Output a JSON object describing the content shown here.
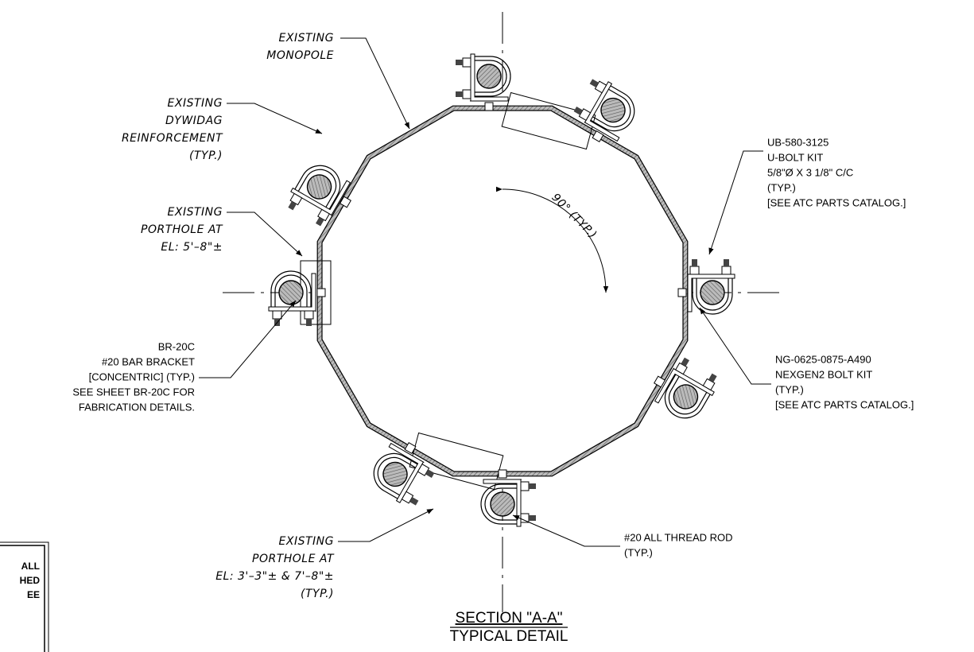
{
  "labels": [
    {
      "lines": [
        "EXISTING",
        "MONOPOLE"
      ]
    },
    {
      "lines": [
        "EXISTING",
        "DYWIDAG",
        "REINFORCEMENT",
        "(TYP.)"
      ]
    },
    {
      "lines": [
        "EXISTING",
        "PORTHOLE AT",
        "EL: 5'–8\"±"
      ]
    },
    {
      "lines": [
        "BR-20C",
        "#20 BAR BRACKET",
        "[CONCENTRIC] (TYP.)",
        "SEE SHEET BR-20C FOR",
        "FABRICATION DETAILS."
      ]
    },
    {
      "lines": [
        "EXISTING",
        "PORTHOLE AT",
        "EL: 3'–3\"± & 7'–8\"±",
        "(TYP.)"
      ]
    },
    {
      "lines": [
        "#20 ALL THREAD ROD",
        "(TYP.)"
      ]
    },
    {
      "lines": [
        "UB-580-3125",
        "U-BOLT KIT",
        "5/8\"Ø X 3 1/8\" C/C",
        "(TYP.)",
        "[SEE ATC PARTS CATALOG.]"
      ]
    },
    {
      "lines": [
        "NG-0625-0875-A490",
        "NEXGEN2 BOLT KIT",
        "(TYP.)",
        "[SEE ATC PARTS CATALOG.]"
      ]
    },
    {
      "lines": [
        "90° (TYP.)"
      ]
    }
  ],
  "section": {
    "title": "SECTION \"A-A\"",
    "subtitle": "TYPICAL DETAIL"
  },
  "note_box": {
    "lines": [
      "ALL",
      "HED",
      "EE"
    ]
  }
}
